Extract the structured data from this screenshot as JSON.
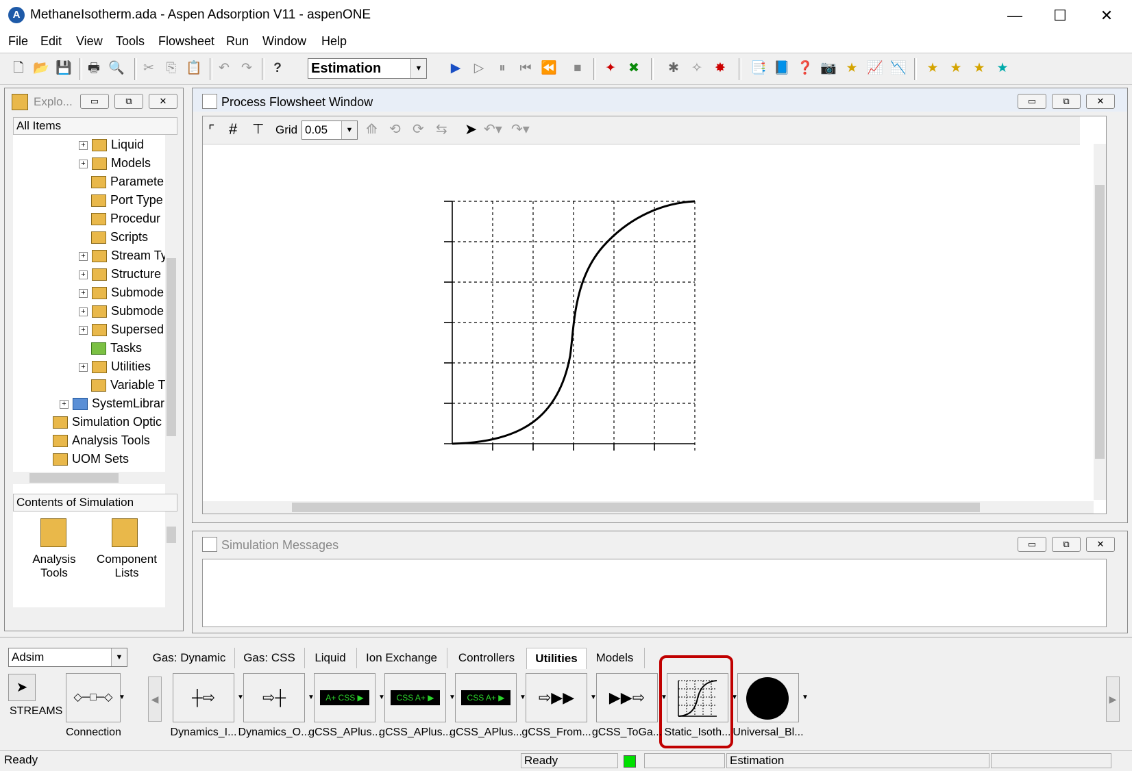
{
  "window": {
    "title": "MethaneIsotherm.ada - Aspen Adsorption V11 - aspenONE",
    "minimize": "—",
    "maximize": "☐",
    "close": "✕"
  },
  "menu": [
    "File",
    "Edit",
    "View",
    "Tools",
    "Flowsheet",
    "Run",
    "Window",
    "Help"
  ],
  "toolbar": {
    "run_mode": "Estimation"
  },
  "explorer": {
    "title": "Explo...",
    "header": "All Items",
    "items": [
      "Liquid",
      "Models",
      "Paramete",
      "Port Type",
      "Procedur",
      "Scripts",
      "Stream Ty",
      "Structure",
      "Submode",
      "Submode",
      "Supersed",
      "Tasks",
      "Utilities",
      "Variable T",
      "SystemLibrar",
      "Simulation Optic",
      "Analysis Tools",
      "UOM Sets"
    ]
  },
  "contents": {
    "header": "Contents of Simulation",
    "items": [
      {
        "line1": "Analysis",
        "line2": "Tools"
      },
      {
        "line1": "Component",
        "line2": "Lists"
      }
    ]
  },
  "flowsheet": {
    "title": "Process Flowsheet Window",
    "grid_label": "Grid",
    "grid_value": "0.05"
  },
  "messages": {
    "title": "Simulation Messages"
  },
  "library": {
    "selector": "Adsim",
    "tabs": [
      "Gas: Dynamic",
      "Gas: CSS",
      "Liquid",
      "Ion Exchange",
      "Controllers",
      "Utilities",
      "Models"
    ],
    "active_tab": "Utilities",
    "streams_label": "STREAMS",
    "connection_label": "Connection",
    "palette": [
      "Dynamics_I...",
      "Dynamics_O...",
      "gCSS_APlus...",
      "gCSS_APlus...",
      "gCSS_APlus...",
      "gCSS_From...",
      "gCSS_ToGa...",
      "Static_Isoth...",
      "Universal_Bl..."
    ],
    "highlight_color": "#c00000"
  },
  "status": {
    "left": "Ready",
    "mid": "Ready",
    "mode": "Estimation",
    "indicator_color": "#00e000"
  }
}
